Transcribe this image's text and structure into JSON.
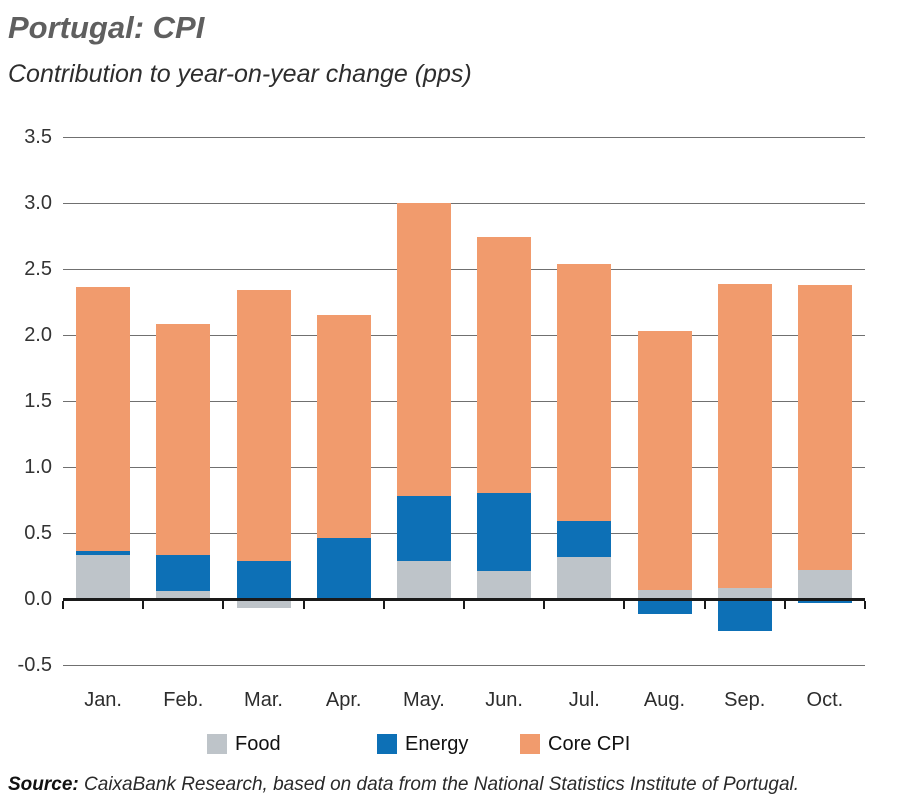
{
  "header": {
    "title": "Portugal: CPI",
    "subtitle": "Contribution to year-on-year change (pps)"
  },
  "source": {
    "label": "Source:",
    "text": " CaixaBank Research, based on data from the National Statistics Institute of Portugal."
  },
  "colors": {
    "food": "#BEC4C9",
    "energy": "#0D70B6",
    "core": "#F19B6D",
    "grid": "#707070",
    "axis": "#1A1A1A"
  },
  "chart_data": {
    "type": "bar",
    "stacked": true,
    "title": "Portugal: CPI",
    "subtitle": "Contribution to year-on-year change (pps)",
    "unit": "pps",
    "categories": [
      "Jan.",
      "Feb.",
      "Mar.",
      "Apr.",
      "May.",
      "Jun.",
      "Jul.",
      "Aug.",
      "Sep.",
      "Oct."
    ],
    "series": [
      {
        "name": "Food",
        "color": "#BEC4C9",
        "values": [
          0.33,
          0.06,
          -0.07,
          0.01,
          0.29,
          0.21,
          0.32,
          0.07,
          0.08,
          0.22
        ]
      },
      {
        "name": "Energy",
        "color": "#0D70B6",
        "values": [
          0.03,
          0.27,
          0.29,
          0.45,
          0.49,
          0.59,
          0.27,
          -0.11,
          -0.24,
          -0.03
        ]
      },
      {
        "name": "Core CPI",
        "color": "#F19B6D",
        "values": [
          2.0,
          1.75,
          2.05,
          1.69,
          2.22,
          1.94,
          1.95,
          1.96,
          2.31,
          2.16
        ]
      }
    ],
    "stack_totals": [
      2.36,
      2.08,
      2.34,
      2.15,
      3.0,
      2.74,
      2.54,
      2.03,
      2.39,
      2.38
    ],
    "ylim": [
      -0.5,
      3.5
    ],
    "ytick_step": 0.5,
    "ytick_labels": [
      "3.5",
      "3.0",
      "2.5",
      "2.0",
      "1.5",
      "1.0",
      "0.5",
      "0.0",
      "-0.5"
    ],
    "grid": true,
    "legend_position": "bottom"
  }
}
